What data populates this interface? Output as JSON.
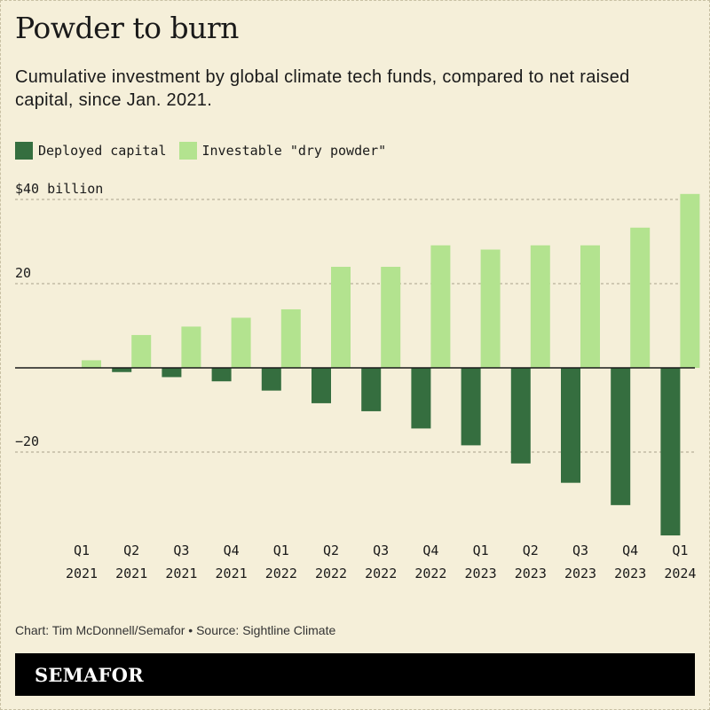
{
  "title": "Powder to burn",
  "subtitle": "Cumulative investment by global climate tech funds, compared to net raised capital, since Jan. 2021.",
  "legend": {
    "deployed": "Deployed capital",
    "dry_powder": "Investable \"dry powder\""
  },
  "colors": {
    "deployed": "#356e3f",
    "dry_powder": "#b3e38f",
    "background": "#f5efd9"
  },
  "chart_data": {
    "type": "bar",
    "title": "Powder to burn",
    "ylabel": "",
    "xlabel": "",
    "ylim": [
      -40,
      42
    ],
    "yticks": [
      40,
      20,
      -20
    ],
    "ytick_labels": [
      "$40 billion",
      "20",
      "−20"
    ],
    "categories": [
      [
        "Q1",
        "2021"
      ],
      [
        "Q2",
        "2021"
      ],
      [
        "Q3",
        "2021"
      ],
      [
        "Q4",
        "2021"
      ],
      [
        "Q1",
        "2022"
      ],
      [
        "Q2",
        "2022"
      ],
      [
        "Q3",
        "2022"
      ],
      [
        "Q4",
        "2022"
      ],
      [
        "Q1",
        "2023"
      ],
      [
        "Q2",
        "2023"
      ],
      [
        "Q3",
        "2023"
      ],
      [
        "Q4",
        "2023"
      ],
      [
        "Q1",
        "2024"
      ]
    ],
    "series": [
      {
        "name": "Deployed capital",
        "values": [
          0,
          -1,
          -2.2,
          -3.2,
          -5.4,
          -8.4,
          -10.3,
          -14.4,
          -18.4,
          -22.7,
          -27.3,
          -32.6,
          -39.8
        ]
      },
      {
        "name": "Investable \"dry powder\"",
        "values": [
          1.8,
          7.8,
          9.8,
          11.9,
          13.9,
          24.0,
          24.0,
          29.1,
          28.1,
          29.1,
          29.1,
          33.3,
          41.3
        ]
      }
    ]
  },
  "footer": "Chart: Tim McDonnell/Semafor • Source: Sightline Climate",
  "brand": "SEMAFOR"
}
